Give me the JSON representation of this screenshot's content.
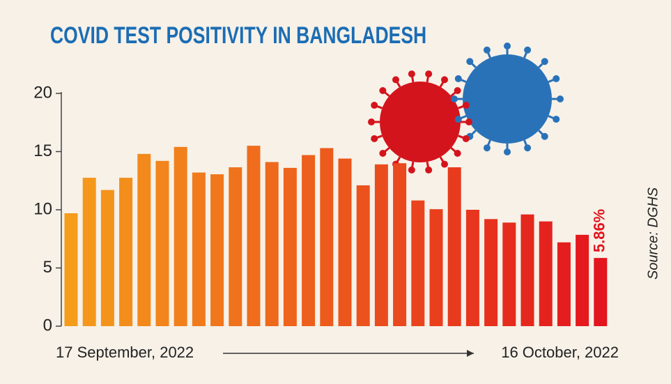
{
  "chart_data": {
    "type": "bar",
    "title": "COVID TEST POSITIVITY IN BANGLADESH",
    "source": "Source: DGHS",
    "categories": [
      "17 September, 2022",
      null,
      null,
      null,
      null,
      null,
      null,
      null,
      null,
      null,
      null,
      null,
      null,
      null,
      null,
      null,
      null,
      null,
      null,
      null,
      null,
      null,
      null,
      null,
      null,
      null,
      null,
      null,
      null,
      "16 October, 2022"
    ],
    "values": [
      9.7,
      12.75,
      11.7,
      12.75,
      14.8,
      14.2,
      15.4,
      13.2,
      13.05,
      13.65,
      15.5,
      14.1,
      13.6,
      14.7,
      15.3,
      14.4,
      12.1,
      13.9,
      14.0,
      10.8,
      10.05,
      13.65,
      10.0,
      9.2,
      8.9,
      9.6,
      9.0,
      7.2,
      7.85,
      5.86
    ],
    "value_labels": [
      null,
      null,
      null,
      null,
      null,
      null,
      null,
      null,
      null,
      null,
      null,
      null,
      null,
      null,
      null,
      null,
      null,
      null,
      null,
      null,
      null,
      null,
      null,
      null,
      null,
      null,
      null,
      null,
      null,
      "5.86%"
    ],
    "gradient": [
      "#f59c1b",
      "#e3151e"
    ],
    "ylim": [
      0,
      20
    ],
    "yticks": [
      0,
      5,
      10,
      15,
      20
    ]
  }
}
